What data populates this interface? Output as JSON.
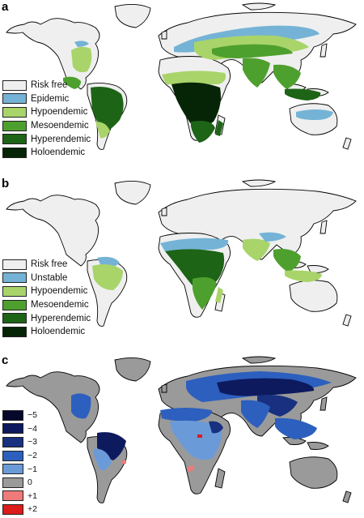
{
  "panels": [
    {
      "letter": "a",
      "legend": [
        {
          "label": "Risk free",
          "color": "#efefef"
        },
        {
          "label": "Epidemic",
          "color": "#74b3d6"
        },
        {
          "label": "Hypoendemic",
          "color": "#a8d46a"
        },
        {
          "label": "Mesoendemic",
          "color": "#4ea02e"
        },
        {
          "label": "Hyperendemic",
          "color": "#1d6416"
        },
        {
          "label": "Holoendemic",
          "color": "#062506"
        }
      ]
    },
    {
      "letter": "b",
      "legend": [
        {
          "label": "Risk free",
          "color": "#efefef"
        },
        {
          "label": "Unstable",
          "color": "#74b3d6"
        },
        {
          "label": "Hypoendemic",
          "color": "#a8d46a"
        },
        {
          "label": "Mesoendemic",
          "color": "#4ea02e"
        },
        {
          "label": "Hyperendemic",
          "color": "#1d6416"
        },
        {
          "label": "Holoendemic",
          "color": "#062506"
        }
      ]
    },
    {
      "letter": "c",
      "legend": [
        {
          "label": "−5",
          "color": "#05082a"
        },
        {
          "label": "−4",
          "color": "#0d1a5e"
        },
        {
          "label": "−3",
          "color": "#18307f"
        },
        {
          "label": "−2",
          "color": "#2c5fbe"
        },
        {
          "label": "−1",
          "color": "#6a9bd8"
        },
        {
          "label": "0",
          "color": "#9a9a9a"
        },
        {
          "label": "+1",
          "color": "#ee7a7a"
        },
        {
          "label": "+2",
          "color": "#dd1b1b"
        }
      ]
    }
  ]
}
